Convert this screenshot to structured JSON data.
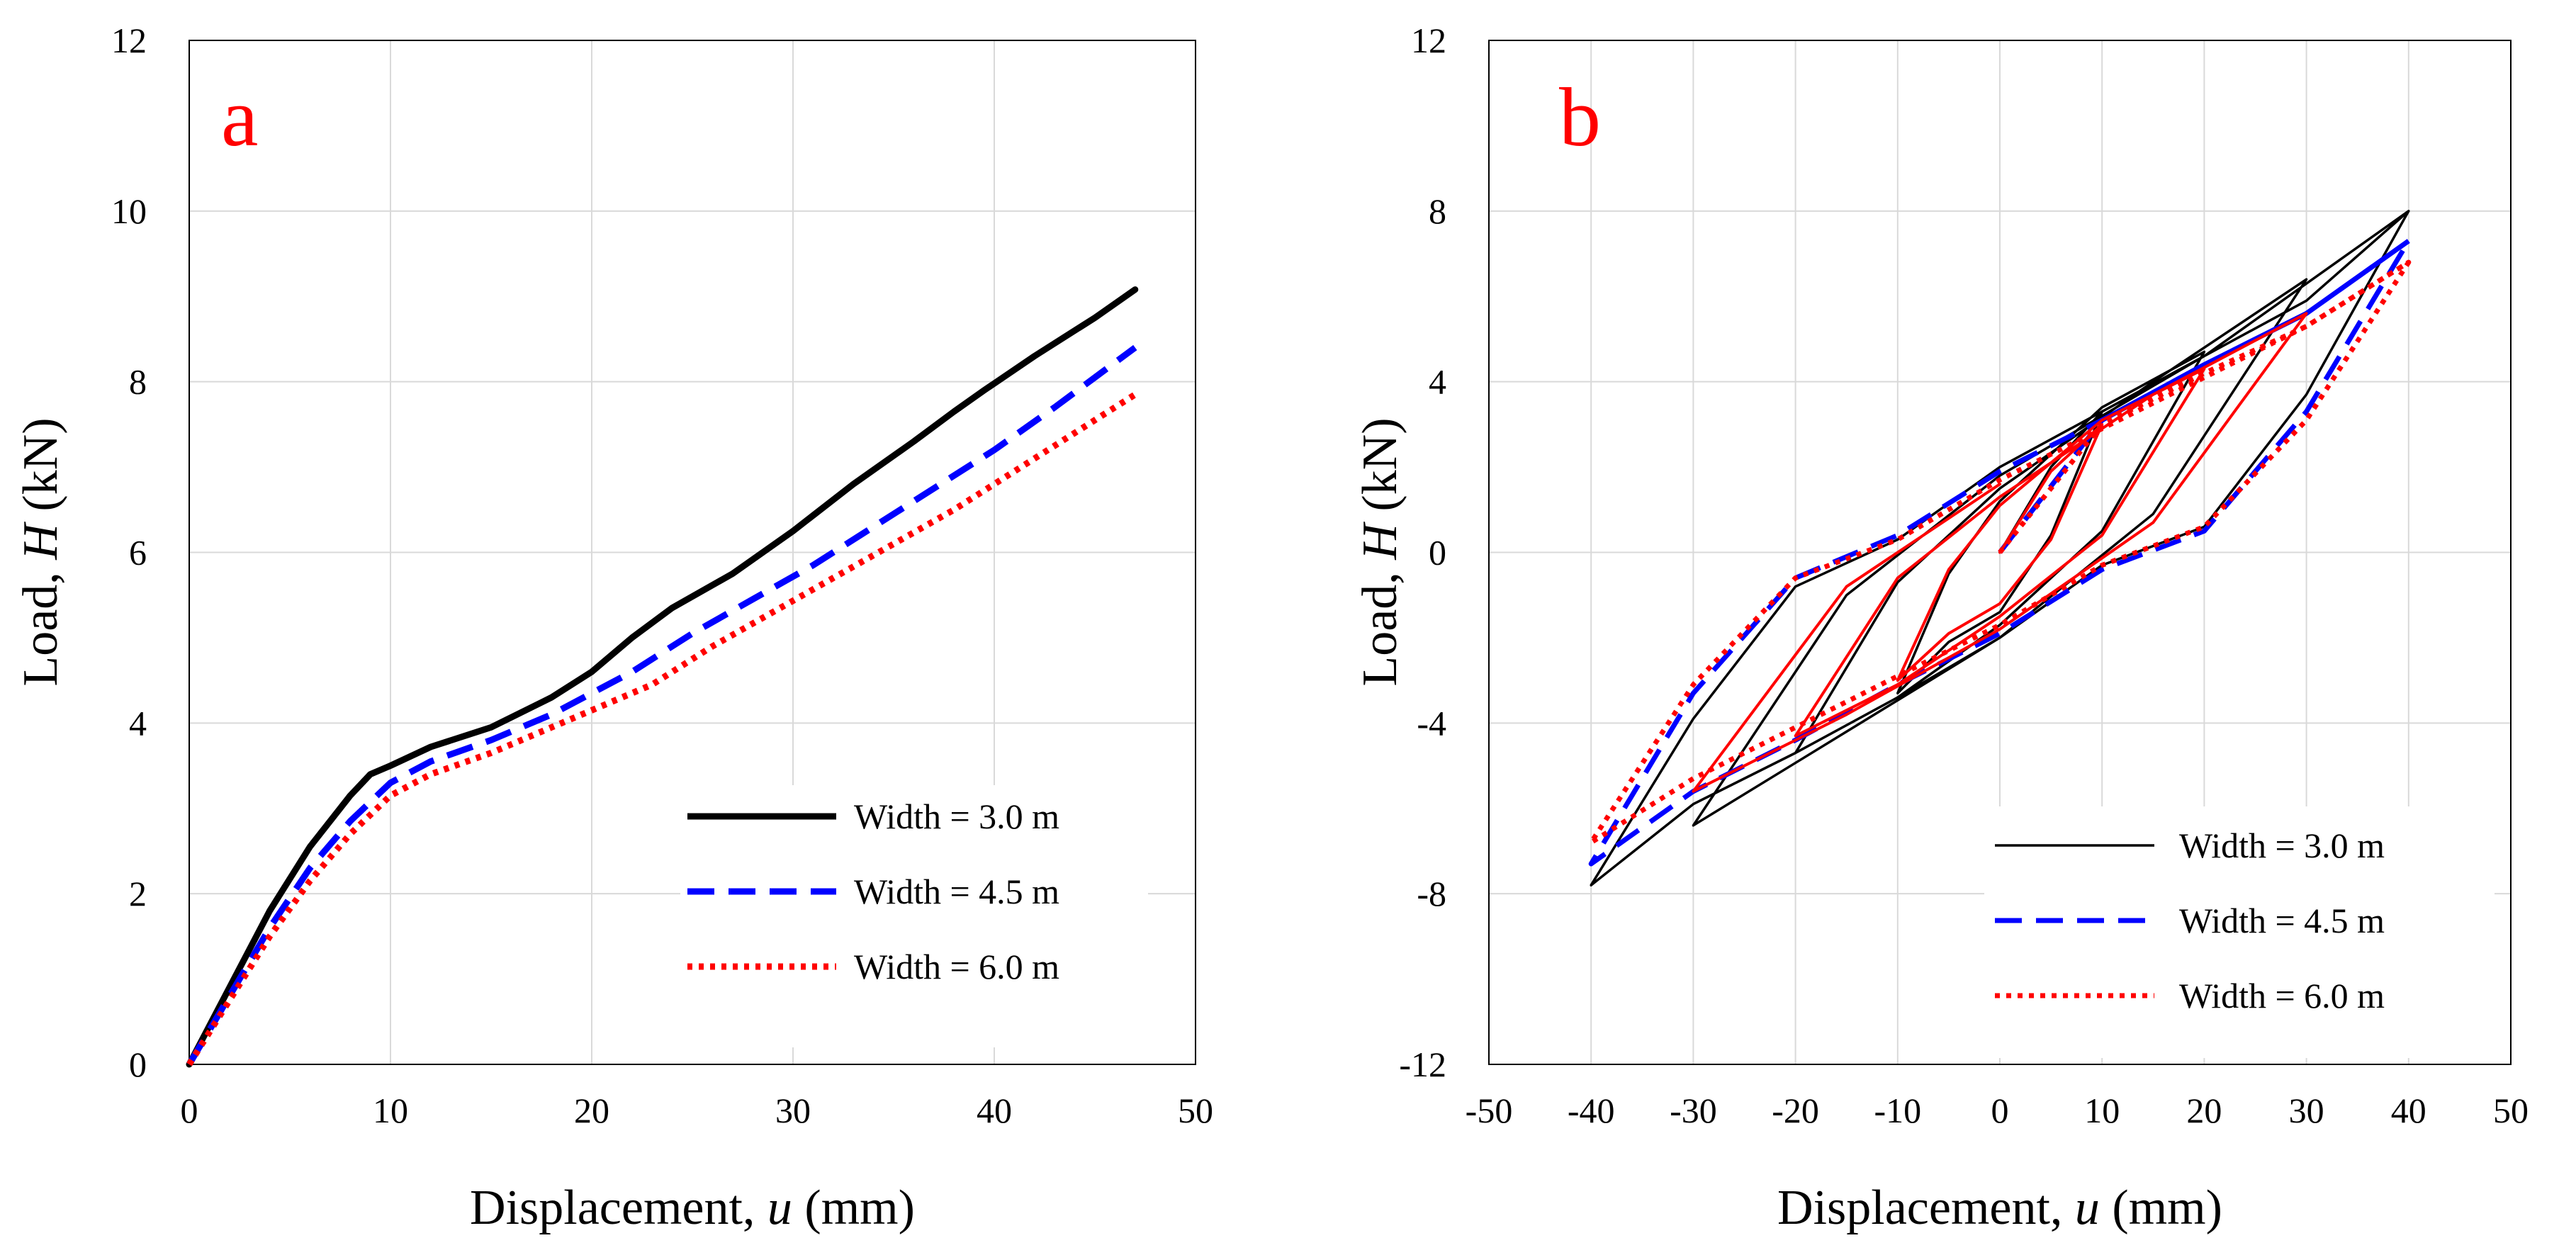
{
  "chart_data": [
    {
      "panel": "a",
      "type": "line",
      "xlabel_prefix": "Displacement, ",
      "xlabel_var": "u",
      "xlabel_suffix": " (mm)",
      "ylabel_prefix": "Load, ",
      "ylabel_var": "H",
      "ylabel_suffix": " (kN)",
      "xlim": [
        0,
        50
      ],
      "ylim": [
        0,
        12
      ],
      "xticks": [
        "0",
        "10",
        "20",
        "30",
        "40",
        "50"
      ],
      "yticks": [
        "0",
        "2",
        "4",
        "6",
        "8",
        "10",
        "12"
      ],
      "grid": true,
      "legend_position": "lower-right",
      "label_color": "#ff0000",
      "series": [
        {
          "name": "Width = 3.0 m",
          "color": "#000000",
          "style": "solid",
          "width": "thick",
          "x": [
            0,
            2,
            4,
            6,
            8,
            9,
            10,
            12,
            15,
            18,
            20,
            22,
            24,
            27,
            30,
            33,
            36,
            38,
            39.5,
            42,
            45,
            47
          ],
          "y": [
            0,
            0.9,
            1.8,
            2.55,
            3.15,
            3.4,
            3.5,
            3.72,
            3.95,
            4.3,
            4.6,
            5.0,
            5.35,
            5.75,
            6.25,
            6.8,
            7.3,
            7.65,
            7.9,
            8.3,
            8.75,
            9.08
          ]
        },
        {
          "name": "Width = 4.5 m",
          "color": "#0000ff",
          "style": "dashed",
          "width": "thick",
          "x": [
            0,
            2,
            4,
            6,
            8,
            10,
            12,
            15,
            18,
            20,
            22,
            25,
            28,
            31,
            34,
            37,
            40,
            43,
            45,
            47
          ],
          "y": [
            0,
            0.8,
            1.6,
            2.3,
            2.85,
            3.3,
            3.55,
            3.8,
            4.1,
            4.35,
            4.6,
            5.05,
            5.45,
            5.85,
            6.3,
            6.75,
            7.2,
            7.7,
            8.05,
            8.4
          ]
        },
        {
          "name": "Width = 6.0 m",
          "color": "#ff0000",
          "style": "dotted",
          "width": "thick",
          "x": [
            0,
            2,
            4,
            6,
            8,
            10,
            12,
            15,
            18,
            20,
            23,
            26,
            29,
            32,
            35,
            38,
            41,
            44,
            47
          ],
          "y": [
            0,
            0.75,
            1.5,
            2.15,
            2.7,
            3.15,
            3.4,
            3.65,
            3.95,
            4.15,
            4.45,
            4.9,
            5.3,
            5.7,
            6.1,
            6.5,
            6.95,
            7.4,
            7.85
          ]
        }
      ]
    },
    {
      "panel": "b",
      "type": "line",
      "xlabel_prefix": "Displacement, ",
      "xlabel_var": "u",
      "xlabel_suffix": " (mm)",
      "ylabel_prefix": "Load, ",
      "ylabel_var": "H",
      "ylabel_suffix": " (kN)",
      "xlim": [
        -50,
        50
      ],
      "ylim": [
        -12,
        12
      ],
      "xticks": [
        "-50",
        "-40",
        "-30",
        "-20",
        "-10",
        "0",
        "10",
        "20",
        "30",
        "40",
        "50"
      ],
      "yticks": [
        "-12",
        "-8",
        "-4",
        "0",
        "4",
        "8",
        "12"
      ],
      "grid": true,
      "legend_position": "lower-right",
      "label_color": "#ff0000",
      "series": [
        {
          "name": "Width = 3.0 m",
          "color": "#000000",
          "style": "solid",
          "width": "thin",
          "x": [
            0,
            5,
            10,
            5,
            0,
            -5,
            -10,
            -5,
            0,
            10,
            20,
            10,
            0,
            -10,
            -20,
            -10,
            0,
            15,
            30,
            15,
            0,
            -15,
            -30,
            -15,
            0,
            20,
            40,
            30,
            20,
            10,
            0,
            -10,
            -20,
            -30,
            -40,
            -30,
            -20,
            -10,
            0,
            10,
            20,
            30,
            40
          ],
          "y": [
            0,
            2.0,
            3.3,
            0.4,
            -1.4,
            -2.1,
            -3.3,
            -0.5,
            1.2,
            3.4,
            4.7,
            0.5,
            -1.7,
            -3.4,
            -4.7,
            -0.7,
            1.5,
            4.0,
            6.4,
            0.9,
            -2.0,
            -4.2,
            -6.4,
            -1.0,
            1.8,
            4.6,
            8.0,
            3.7,
            0.6,
            -0.3,
            -2.0,
            -3.4,
            -4.7,
            -5.9,
            -7.8,
            -3.9,
            -0.8,
            0.3,
            2.0,
            3.3,
            4.6,
            5.9,
            8.0
          ]
        },
        {
          "name": "Width = 4.5 m",
          "color": "#0000ff",
          "style": "dashed",
          "width": "medium",
          "x": [
            0,
            10,
            20,
            30,
            40,
            30,
            20,
            10,
            0,
            -10,
            -20,
            -30,
            -40,
            -30,
            -20,
            -10,
            0,
            10,
            20,
            30,
            40
          ],
          "y": [
            0,
            3.1,
            4.4,
            5.6,
            7.3,
            3.3,
            0.5,
            -0.4,
            -1.9,
            -3.1,
            -4.4,
            -5.6,
            -7.3,
            -3.3,
            -0.6,
            0.4,
            1.9,
            3.1,
            4.4,
            5.6,
            7.3
          ]
        },
        {
          "name": "Width = 6.0 m",
          "color": "#ff0000",
          "style": "dotted",
          "width": "medium",
          "x": [
            0,
            10,
            20,
            30,
            40,
            30,
            20,
            10,
            0,
            -10,
            -20,
            -30,
            -40,
            -30,
            -20,
            -10,
            0,
            10,
            20,
            30,
            40
          ],
          "y": [
            0,
            3.0,
            4.2,
            5.3,
            6.8,
            3.1,
            0.6,
            -0.3,
            -1.7,
            -2.9,
            -4.1,
            -5.3,
            -6.8,
            -3.1,
            -0.6,
            0.3,
            1.7,
            2.9,
            4.1,
            5.3,
            6.8
          ]
        }
      ]
    }
  ],
  "panel_b_extra_loops": {
    "color": "#ff0000",
    "x": [
      0,
      5,
      10,
      5,
      0,
      -5,
      -10,
      -5,
      0,
      10,
      20,
      10,
      0,
      -10,
      -20,
      -10,
      0,
      15,
      30,
      15,
      0,
      -15,
      -30,
      -15,
      0
    ],
    "y": [
      0,
      1.9,
      3.0,
      0.3,
      -1.2,
      -1.9,
      -3.0,
      -0.4,
      1.1,
      3.1,
      4.3,
      0.4,
      -1.5,
      -3.1,
      -4.3,
      -0.6,
      1.3,
      3.7,
      5.6,
      0.7,
      -1.8,
      -3.8,
      -5.6,
      -0.8,
      1.6
    ]
  }
}
